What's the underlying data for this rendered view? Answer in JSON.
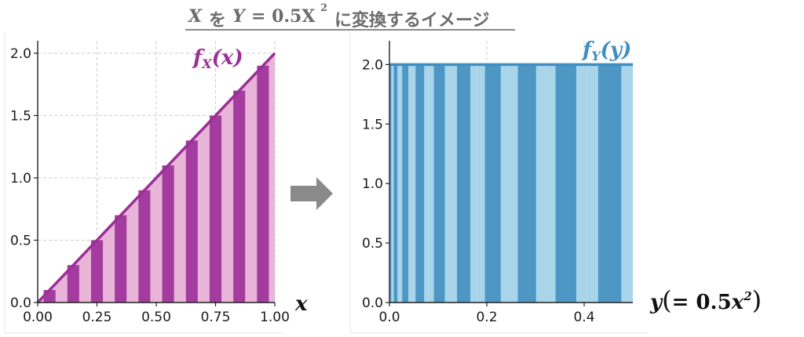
{
  "title": {
    "x_var": "X",
    "mid1": "を",
    "y_var": "Y",
    "eq": "= 0.5X",
    "power": "2",
    "rest": "に変換するイメージ"
  },
  "colors": {
    "left_dark": "#a43b9e",
    "left_light": "#e8b4d8",
    "left_line": "#9b2f96",
    "right_dark": "#4e97c4",
    "right_light": "#a8d5ea",
    "right_line": "#3f8fc2",
    "grid": "#cccccc",
    "arrow": "#8a8a8a"
  },
  "chart_data": [
    {
      "type": "bar",
      "name": "left",
      "curve_label": {
        "f": "f",
        "sub": "X",
        "arg": "(x)"
      },
      "xlabel": "x",
      "xlim": [
        0.0,
        1.0
      ],
      "ylim": [
        0.0,
        2.1
      ],
      "xticks": [
        0.0,
        0.25,
        0.5,
        0.75,
        1.0
      ],
      "xtick_labels": [
        "0.00",
        "0.25",
        "0.50",
        "0.75",
        "1.00"
      ],
      "yticks": [
        0.0,
        0.5,
        1.0,
        1.5,
        2.0
      ],
      "ytick_labels": [
        "0.0",
        "0.5",
        "1.0",
        "1.5",
        "2.0"
      ],
      "line": {
        "x": [
          0.0,
          1.0
        ],
        "y": [
          0.0,
          2.0
        ]
      },
      "bins": [
        {
          "x0": 0.0,
          "x1": 0.1,
          "value": 0.1
        },
        {
          "x0": 0.1,
          "x1": 0.2,
          "value": 0.3
        },
        {
          "x0": 0.2,
          "x1": 0.3,
          "value": 0.5
        },
        {
          "x0": 0.3,
          "x1": 0.4,
          "value": 0.7
        },
        {
          "x0": 0.4,
          "x1": 0.5,
          "value": 0.9
        },
        {
          "x0": 0.5,
          "x1": 0.6,
          "value": 1.1
        },
        {
          "x0": 0.6,
          "x1": 0.7,
          "value": 1.3
        },
        {
          "x0": 0.7,
          "x1": 0.8,
          "value": 1.5
        },
        {
          "x0": 0.8,
          "x1": 0.9,
          "value": 1.7
        },
        {
          "x0": 0.9,
          "x1": 1.0,
          "value": 1.9
        }
      ]
    },
    {
      "type": "bar",
      "name": "right",
      "curve_label": {
        "f": "f",
        "sub": "Y",
        "arg": "(y)"
      },
      "xlabel_parts": {
        "y": "y",
        "open": "(",
        "eq": "= 0.5",
        "x": "x",
        "power": "2",
        "close": ")"
      },
      "xlim": [
        0.0,
        0.5
      ],
      "ylim": [
        0.0,
        2.2
      ],
      "xticks": [
        0.0,
        0.2,
        0.4
      ],
      "xtick_labels": [
        "0.0",
        "0.2",
        "0.4"
      ],
      "yticks": [
        0.0,
        0.5,
        1.0,
        1.5,
        2.0
      ],
      "ytick_labels": [
        "0.0",
        "0.5",
        "1.0",
        "1.5",
        "2.0"
      ],
      "line": {
        "x": [
          0.0,
          0.5
        ],
        "y": [
          2.0,
          2.0
        ]
      },
      "bins": [
        {
          "x0": 0.0,
          "x1": 0.005,
          "value": 2.0
        },
        {
          "x0": 0.005,
          "x1": 0.02,
          "value": 2.0
        },
        {
          "x0": 0.02,
          "x1": 0.045,
          "value": 2.0
        },
        {
          "x0": 0.045,
          "x1": 0.08,
          "value": 2.0
        },
        {
          "x0": 0.08,
          "x1": 0.125,
          "value": 2.0
        },
        {
          "x0": 0.125,
          "x1": 0.18,
          "value": 2.0
        },
        {
          "x0": 0.18,
          "x1": 0.245,
          "value": 2.0
        },
        {
          "x0": 0.245,
          "x1": 0.32,
          "value": 2.0
        },
        {
          "x0": 0.32,
          "x1": 0.405,
          "value": 2.0
        },
        {
          "x0": 0.405,
          "x1": 0.5,
          "value": 2.0
        }
      ]
    }
  ]
}
